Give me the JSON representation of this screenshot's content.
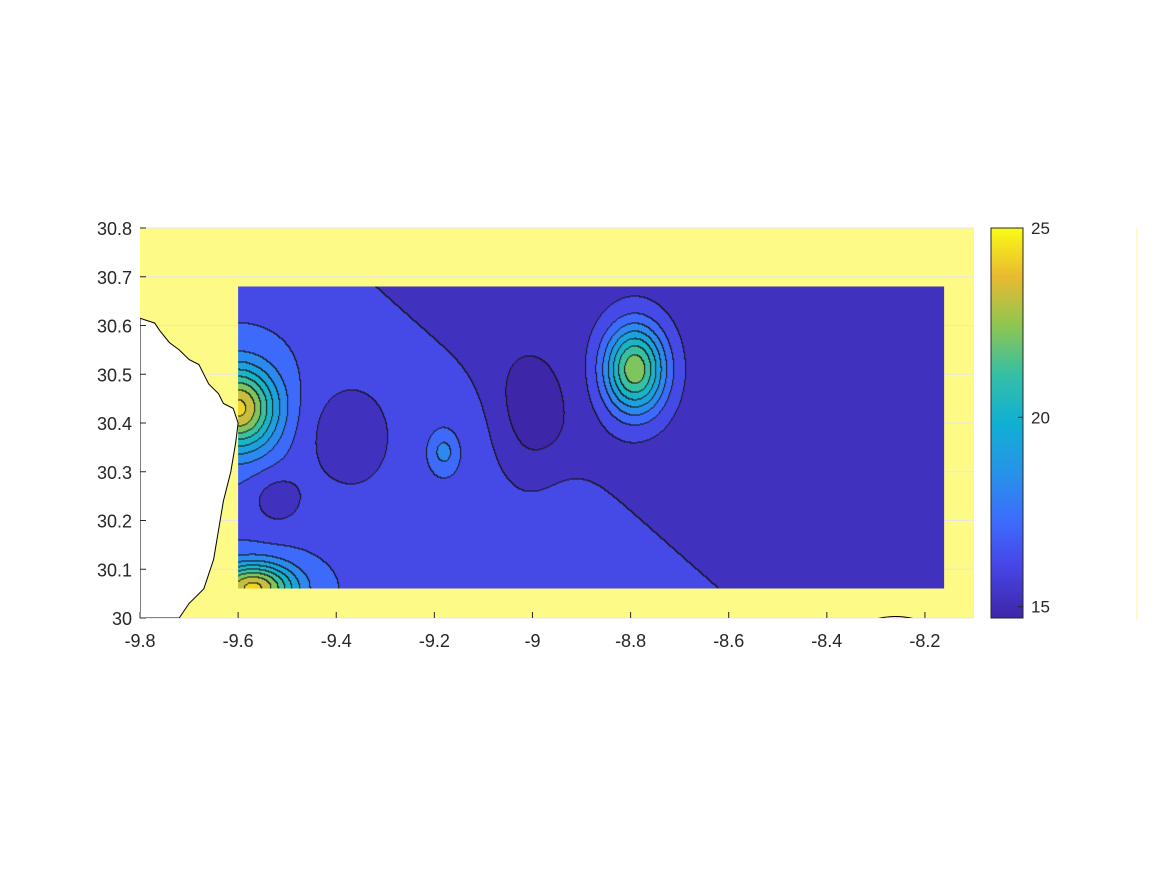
{
  "chart_data": {
    "type": "heatmap",
    "subtype": "filled-contour map",
    "title": "",
    "xlabel": "",
    "ylabel": "",
    "xlim": [
      -9.8,
      -8.1
    ],
    "ylim": [
      30.0,
      30.8
    ],
    "x_ticks": [
      -9.8,
      -9.6,
      -9.4,
      -9.2,
      -9.0,
      -8.8,
      -8.6,
      -8.4,
      -8.2
    ],
    "x_tick_labels": [
      "-9.8",
      "-9.6",
      "-9.4",
      "-9.2",
      "-9",
      "-8.8",
      "-8.6",
      "-8.4",
      "-8.2"
    ],
    "y_ticks": [
      30.0,
      30.1,
      30.2,
      30.3,
      30.4,
      30.5,
      30.6,
      30.7,
      30.8
    ],
    "y_tick_labels": [
      "30",
      "30.1",
      "30.2",
      "30.3",
      "30.4",
      "30.5",
      "30.6",
      "30.7",
      "30.8"
    ],
    "grid": true,
    "data_extent": {
      "x": [
        -9.6,
        -8.16
      ],
      "y": [
        30.06,
        30.68
      ]
    },
    "colormap": "parula",
    "land_color": "#ffffff",
    "ocean_fill_color": "#fdfa86",
    "colorbar": {
      "range": [
        14.7,
        25.0
      ],
      "ticks": [
        15,
        20,
        25
      ],
      "tick_labels": [
        "15",
        "20",
        "25"
      ],
      "location": "right"
    },
    "field_peaks": [
      {
        "name": "northwest-coast-high",
        "x": -9.6,
        "y": 30.43,
        "value": 24.0
      },
      {
        "name": "southwest-coast-high",
        "x": -9.57,
        "y": 30.06,
        "value": 24.0
      },
      {
        "name": "eddy-high",
        "x": -8.79,
        "y": 30.51,
        "value": 23.8
      },
      {
        "name": "mid-low-1",
        "x": -9.37,
        "y": 30.37,
        "value": 15.0
      },
      {
        "name": "mid-low-2",
        "x": -9.01,
        "y": 30.38,
        "value": 15.1
      },
      {
        "name": "small-low",
        "x": -9.52,
        "y": 30.24,
        "value": 15.2
      },
      {
        "name": "mid-high",
        "x": -9.18,
        "y": 30.34,
        "value": 18.2
      },
      {
        "name": "east-low",
        "x": -8.2,
        "y": 30.63,
        "value": 15.1
      }
    ]
  }
}
